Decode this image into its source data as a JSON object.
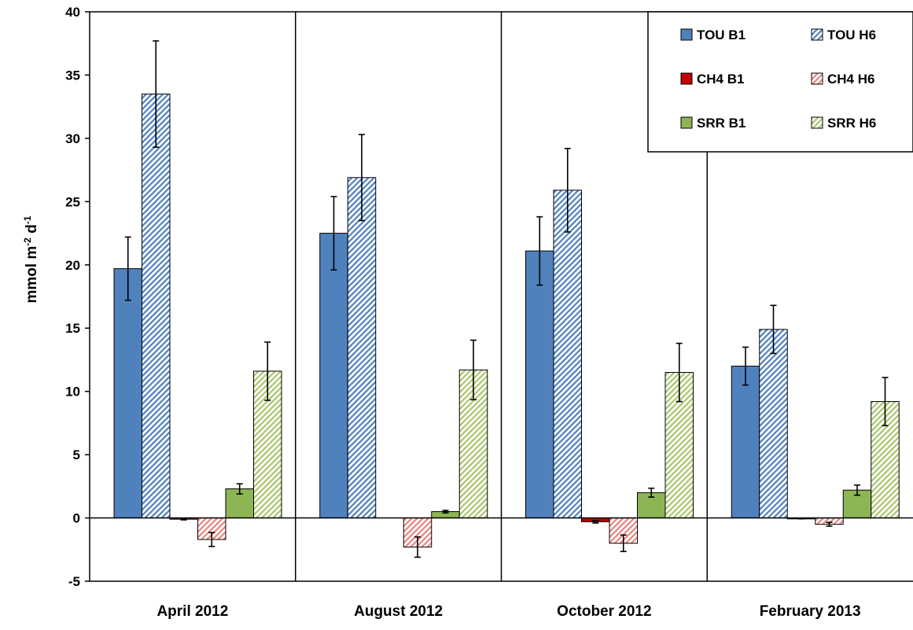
{
  "chart_data": {
    "type": "bar",
    "title": "",
    "xlabel": "",
    "ylabel": {
      "base": "mmol m",
      "sup1": "-2",
      "mid": " d",
      "sup2": "-1"
    },
    "ylim": [
      -5,
      40
    ],
    "yticks": [
      -5,
      0,
      5,
      10,
      15,
      20,
      25,
      30,
      35,
      40
    ],
    "grid": false,
    "legend_position": "top-right",
    "categories": [
      "April 2012",
      "August 2012",
      "October 2012",
      "February 2013"
    ],
    "series": [
      {
        "name": "TOU B1",
        "color": "#4f81bd",
        "pattern": "solid",
        "values": [
          19.7,
          22.5,
          21.1,
          12.0
        ],
        "errors": [
          2.5,
          2.9,
          2.7,
          1.5
        ]
      },
      {
        "name": "TOU H6",
        "color": "#4f81bd",
        "pattern": "hatch",
        "values": [
          33.5,
          26.9,
          25.9,
          14.9
        ],
        "errors": [
          4.2,
          3.4,
          3.3,
          1.9
        ]
      },
      {
        "name": "CH4 B1",
        "color": "#c00000",
        "pattern": "solid",
        "values": [
          -0.1,
          0.0,
          -0.3,
          -0.05
        ],
        "errors": [
          0.05,
          0.0,
          0.1,
          0.02
        ]
      },
      {
        "name": "CH4 H6",
        "color": "#e8837f",
        "pattern": "hatch",
        "values": [
          -1.7,
          -2.3,
          -2.0,
          -0.5
        ],
        "errors": [
          0.55,
          0.8,
          0.65,
          0.15
        ]
      },
      {
        "name": "SRR B1",
        "color": "#8db554",
        "pattern": "solid",
        "values": [
          2.3,
          0.5,
          2.0,
          2.2
        ],
        "errors": [
          0.4,
          0.1,
          0.35,
          0.4
        ]
      },
      {
        "name": "SRR H6",
        "color": "#a9c56b",
        "pattern": "hatch",
        "values": [
          11.6,
          11.7,
          11.5,
          9.2
        ],
        "errors": [
          2.3,
          2.35,
          2.3,
          1.9
        ]
      }
    ]
  }
}
